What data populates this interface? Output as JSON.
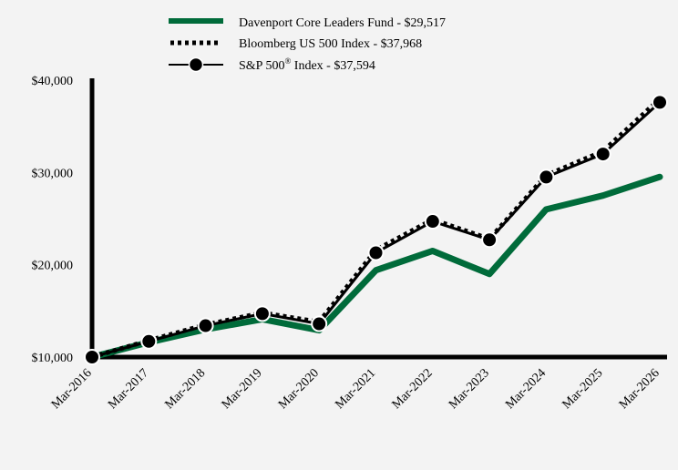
{
  "chart_data": {
    "type": "line",
    "categories": [
      "Mar-2016",
      "Mar-2017",
      "Mar-2018",
      "Mar-2019",
      "Mar-2020",
      "Mar-2021",
      "Mar-2022",
      "Mar-2023",
      "Mar-2024",
      "Mar-2025",
      "Mar-2026"
    ],
    "y_ticks": [
      "$10,000",
      "$20,000",
      "$30,000",
      "$40,000"
    ],
    "y_tick_values": [
      10000,
      20000,
      30000,
      40000
    ],
    "ylim": [
      10000,
      40000
    ],
    "grid": false,
    "legend_position": "top-center",
    "series": [
      {
        "name": "Davenport Core Leaders Fund - $29,517",
        "color": "#006b3a",
        "style": "thick-solid",
        "values": [
          10000,
          11600,
          13000,
          14100,
          12900,
          19400,
          21500,
          19000,
          26000,
          27500,
          29517
        ]
      },
      {
        "name": "Bloomberg US 500 Index - $37,968",
        "color": "#000000",
        "style": "dotted",
        "values": [
          10000,
          11800,
          13500,
          14800,
          13800,
          21600,
          24900,
          22800,
          29700,
          32300,
          37968
        ]
      },
      {
        "name": "S&P 500",
        "name_superscript": "®",
        "name_suffix": " Index - $37,594",
        "color": "#000000",
        "style": "solid-markers",
        "values": [
          10000,
          11700,
          13400,
          14700,
          13600,
          21300,
          24700,
          22700,
          29500,
          32000,
          37594
        ]
      }
    ]
  }
}
